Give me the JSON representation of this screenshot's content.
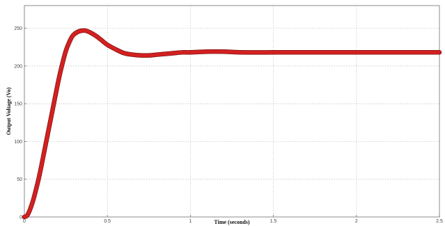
{
  "chart_data": {
    "type": "line",
    "title": "",
    "xlabel": "Time (seconds)",
    "ylabel": "Output Voltage (Vo)",
    "xlim": [
      0,
      2.5
    ],
    "ylim": [
      0,
      280
    ],
    "xticks": [
      0,
      0.5,
      1,
      1.5,
      2,
      2.5
    ],
    "xtick_labels": [
      "0",
      "0.5",
      "1",
      "1.5",
      "2",
      "2.5"
    ],
    "yticks": [
      0,
      50,
      100,
      150,
      200,
      250
    ],
    "ytick_labels": [
      "0",
      "50",
      "100",
      "150",
      "200",
      "250"
    ],
    "grid": true,
    "legend": "none",
    "series_color": "#d42020",
    "series": [
      {
        "x": [
          0,
          0.02,
          0.05,
          0.08,
          0.1,
          0.12,
          0.15,
          0.18,
          0.2,
          0.22,
          0.25,
          0.28,
          0.3,
          0.33,
          0.36,
          0.38,
          0.4,
          0.43,
          0.46,
          0.5,
          0.55,
          0.6,
          0.65,
          0.7,
          0.75,
          0.8,
          0.85,
          0.9,
          0.95,
          1.0,
          1.1,
          1.2,
          1.3,
          1.5,
          1.7,
          2.0,
          2.2,
          2.5
        ],
        "y": [
          0,
          3,
          20,
          45,
          65,
          87,
          120,
          153,
          175,
          195,
          220,
          236,
          242,
          246,
          247,
          246,
          244,
          240,
          235,
          228,
          222,
          217,
          215,
          214,
          214,
          215,
          216,
          217,
          218,
          218,
          219,
          219,
          218,
          218,
          218,
          218,
          218,
          218
        ]
      }
    ]
  }
}
